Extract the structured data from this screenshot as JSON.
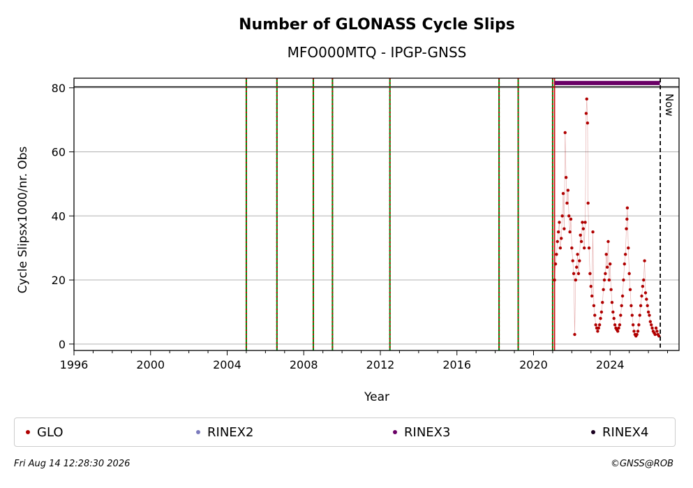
{
  "chart_data": {
    "type": "scatter",
    "title": "Number of GLONASS Cycle Slips",
    "subtitle": "MFO000MTQ - IPGP-GNSS",
    "xlabel": "Year",
    "ylabel": "Cycle Slipsx1000/nr. Obs",
    "xlim": [
      1996,
      2027.6
    ],
    "ylim": [
      -2,
      83
    ],
    "x_ticks": [
      "1996",
      "2000",
      "2004",
      "2008",
      "2012",
      "2016",
      "2020",
      "2024"
    ],
    "y_ticks": [
      "0",
      "20",
      "40",
      "60",
      "80"
    ],
    "grid": "horizontal",
    "reference_line_y": 80.3,
    "event_lines": [
      2005.0,
      2006.6,
      2008.5,
      2009.5,
      2012.5,
      2018.2,
      2019.2,
      2021.0
    ],
    "data_start": 2021.1,
    "rinex3_bar": {
      "x_start": 2021.1,
      "x_end": 2026.6,
      "y": 81.5
    },
    "now_x": 2026.62,
    "now_label": "Now",
    "series": [
      {
        "name": "GLO",
        "color": "#b00000",
        "points": [
          [
            2021.1,
            20
          ],
          [
            2021.15,
            25
          ],
          [
            2021.2,
            28
          ],
          [
            2021.25,
            32
          ],
          [
            2021.3,
            35
          ],
          [
            2021.35,
            38
          ],
          [
            2021.4,
            30
          ],
          [
            2021.45,
            33
          ],
          [
            2021.5,
            40
          ],
          [
            2021.55,
            47
          ],
          [
            2021.6,
            36
          ],
          [
            2021.65,
            66
          ],
          [
            2021.7,
            52
          ],
          [
            2021.75,
            44
          ],
          [
            2021.8,
            48
          ],
          [
            2021.85,
            40
          ],
          [
            2021.9,
            35
          ],
          [
            2021.95,
            39
          ],
          [
            2022.0,
            30
          ],
          [
            2022.05,
            26
          ],
          [
            2022.1,
            22
          ],
          [
            2022.15,
            3
          ],
          [
            2022.2,
            20
          ],
          [
            2022.25,
            24
          ],
          [
            2022.3,
            28
          ],
          [
            2022.35,
            22
          ],
          [
            2022.4,
            26
          ],
          [
            2022.45,
            34
          ],
          [
            2022.5,
            32
          ],
          [
            2022.55,
            38
          ],
          [
            2022.6,
            36
          ],
          [
            2022.65,
            30
          ],
          [
            2022.7,
            38
          ],
          [
            2022.75,
            72
          ],
          [
            2022.78,
            76.5
          ],
          [
            2022.82,
            69
          ],
          [
            2022.85,
            44
          ],
          [
            2022.9,
            30
          ],
          [
            2022.95,
            22
          ],
          [
            2023.0,
            18
          ],
          [
            2023.05,
            15
          ],
          [
            2023.1,
            35
          ],
          [
            2023.15,
            12
          ],
          [
            2023.2,
            9
          ],
          [
            2023.25,
            6
          ],
          [
            2023.3,
            5
          ],
          [
            2023.35,
            4
          ],
          [
            2023.4,
            5
          ],
          [
            2023.45,
            6
          ],
          [
            2023.5,
            8
          ],
          [
            2023.55,
            10
          ],
          [
            2023.6,
            13
          ],
          [
            2023.65,
            17
          ],
          [
            2023.7,
            20
          ],
          [
            2023.75,
            22
          ],
          [
            2023.8,
            28
          ],
          [
            2023.85,
            24
          ],
          [
            2023.9,
            32
          ],
          [
            2023.95,
            20
          ],
          [
            2024.0,
            25
          ],
          [
            2024.05,
            17
          ],
          [
            2024.1,
            13
          ],
          [
            2024.15,
            10
          ],
          [
            2024.2,
            8
          ],
          [
            2024.25,
            6
          ],
          [
            2024.3,
            5
          ],
          [
            2024.35,
            4.5
          ],
          [
            2024.4,
            4
          ],
          [
            2024.45,
            5
          ],
          [
            2024.5,
            6
          ],
          [
            2024.55,
            9
          ],
          [
            2024.6,
            12
          ],
          [
            2024.65,
            15
          ],
          [
            2024.7,
            20
          ],
          [
            2024.75,
            25
          ],
          [
            2024.8,
            28
          ],
          [
            2024.85,
            36
          ],
          [
            2024.88,
            39
          ],
          [
            2024.9,
            42.5
          ],
          [
            2024.95,
            30
          ],
          [
            2025.0,
            22
          ],
          [
            2025.05,
            17
          ],
          [
            2025.1,
            12
          ],
          [
            2025.15,
            9
          ],
          [
            2025.2,
            6
          ],
          [
            2025.25,
            4
          ],
          [
            2025.3,
            3
          ],
          [
            2025.35,
            2.5
          ],
          [
            2025.4,
            3
          ],
          [
            2025.45,
            4
          ],
          [
            2025.5,
            6
          ],
          [
            2025.55,
            9
          ],
          [
            2025.6,
            12
          ],
          [
            2025.65,
            15
          ],
          [
            2025.7,
            18
          ],
          [
            2025.75,
            20
          ],
          [
            2025.8,
            26
          ],
          [
            2025.85,
            16
          ],
          [
            2025.9,
            14
          ],
          [
            2025.95,
            12
          ],
          [
            2026.0,
            10
          ],
          [
            2026.05,
            9
          ],
          [
            2026.1,
            7
          ],
          [
            2026.15,
            6
          ],
          [
            2026.2,
            5
          ],
          [
            2026.25,
            4
          ],
          [
            2026.3,
            3.5
          ],
          [
            2026.35,
            3
          ],
          [
            2026.4,
            5
          ],
          [
            2026.45,
            4
          ],
          [
            2026.5,
            3
          ],
          [
            2026.55,
            2.5
          ]
        ]
      }
    ],
    "legend": [
      "GLO",
      "RINEX2",
      "RINEX3",
      "RINEX4"
    ],
    "legend_colors": [
      "#b00000",
      "#7b7bbd",
      "#6a0066",
      "#1a0020"
    ],
    "colors": {
      "data": "#b00000",
      "event_green": "#008000",
      "event_red": "#cc0000",
      "rinex3": "#6a0066",
      "grid": "#b0b0b0"
    }
  },
  "footer": {
    "timestamp": "Fri Aug 14 12:28:30 2026",
    "credit": "©GNSS@ROB"
  }
}
